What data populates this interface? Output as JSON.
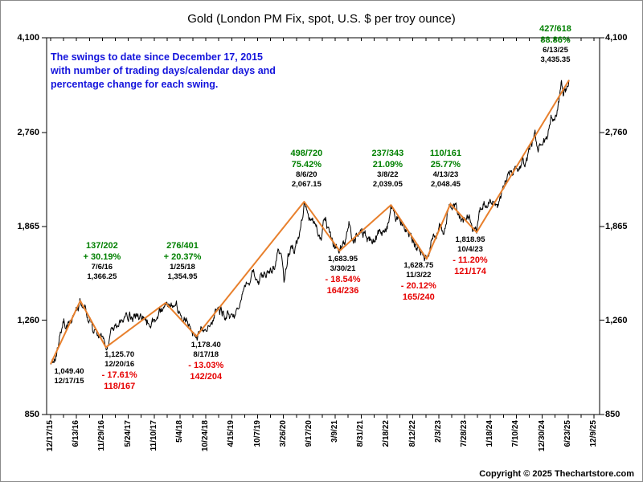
{
  "title": "Gold (London PM Fix, spot, U.S. $ per troy ounce)",
  "note_lines": [
    "The swings to date since December 17, 2015",
    "with number of trading days/calendar days and",
    "percentage change for each swing."
  ],
  "copyright": "Copyright © 2025 Thechartstore.com",
  "colors": {
    "green": "#008000",
    "red": "#e60000",
    "black": "#000000",
    "blue": "#1414dc",
    "orange": "#e8802d",
    "price_line": "#000000",
    "background": "#ffffff"
  },
  "chart_data": {
    "type": "line",
    "title": "Gold (London PM Fix, spot, U.S. $ per troy ounce)",
    "y_axis": {
      "scale": "log",
      "range": [
        850,
        4100
      ],
      "tick_values": [
        4100,
        2760,
        1865,
        1260,
        850
      ],
      "tick_labels": [
        "4,100",
        "2,760",
        "1,865",
        "1,260",
        "850"
      ]
    },
    "x_axis": {
      "unit": "trading days since 12/17/15",
      "range_trading_days": [
        0,
        2510
      ],
      "tick_labels": [
        "12/17/15",
        "6/13/16",
        "11/29/16",
        "5/24/17",
        "11/10/17",
        "5/4/18",
        "10/24/18",
        "4/15/19",
        "10/7/19",
        "3/26/20",
        "9/17/20",
        "3/9/21",
        "8/31/21",
        "2/18/22",
        "8/12/22",
        "2/3/23",
        "7/28/23",
        "1/18/24",
        "7/10/24",
        "12/30/24",
        "6/23/25",
        "12/9/25"
      ]
    },
    "swing_points": [
      {
        "date": "12/17/15",
        "price": 1049.4,
        "td": 0
      },
      {
        "date": "7/6/16",
        "price": 1366.25,
        "td": 137
      },
      {
        "date": "12/20/16",
        "price": 1125.7,
        "td": 255
      },
      {
        "date": "1/25/18",
        "price": 1354.95,
        "td": 531
      },
      {
        "date": "8/17/18",
        "price": 1178.4,
        "td": 673
      },
      {
        "date": "8/6/20",
        "price": 2067.15,
        "td": 1171
      },
      {
        "date": "3/30/21",
        "price": 1683.95,
        "td": 1335
      },
      {
        "date": "3/8/22",
        "price": 2039.05,
        "td": 1572
      },
      {
        "date": "11/3/22",
        "price": 1628.75,
        "td": 1737
      },
      {
        "date": "4/13/23",
        "price": 2048.45,
        "td": 1847
      },
      {
        "date": "10/4/23",
        "price": 1818.95,
        "td": 1968
      },
      {
        "date": "6/13/25",
        "price": 3435.35,
        "td": 2395
      }
    ],
    "annotations": [
      {
        "point": 0,
        "lines": [
          {
            "t": "1,049.40",
            "c": "black"
          },
          {
            "t": "12/17/15",
            "c": "black"
          }
        ]
      },
      {
        "point": 1,
        "lines": [
          {
            "t": "137/202",
            "c": "green"
          },
          {
            "t": "+ 30.19%",
            "c": "green"
          },
          {
            "t": "7/6/16",
            "c": "black"
          },
          {
            "t": "1,366.25",
            "c": "black"
          }
        ]
      },
      {
        "point": 2,
        "lines": [
          {
            "t": "1,125.70",
            "c": "black"
          },
          {
            "t": "12/20/16",
            "c": "black"
          },
          {
            "t": "- 17.61%",
            "c": "red"
          },
          {
            "t": "118/167",
            "c": "red"
          }
        ]
      },
      {
        "point": 3,
        "lines": [
          {
            "t": "276/401",
            "c": "green"
          },
          {
            "t": "+ 20.37%",
            "c": "green"
          },
          {
            "t": "1/25/18",
            "c": "black"
          },
          {
            "t": "1,354.95",
            "c": "black"
          }
        ]
      },
      {
        "point": 4,
        "lines": [
          {
            "t": "1,178.40",
            "c": "black"
          },
          {
            "t": "8/17/18",
            "c": "black"
          },
          {
            "t": "- 13.03%",
            "c": "red"
          },
          {
            "t": "142/204",
            "c": "red"
          }
        ]
      },
      {
        "point": 5,
        "lines": [
          {
            "t": "498/720",
            "c": "green"
          },
          {
            "t": "75.42%",
            "c": "green"
          },
          {
            "t": "8/6/20",
            "c": "black"
          },
          {
            "t": "2,067.15",
            "c": "black"
          }
        ]
      },
      {
        "point": 6,
        "lines": [
          {
            "t": "1,683.95",
            "c": "black"
          },
          {
            "t": "3/30/21",
            "c": "black"
          },
          {
            "t": "- 18.54%",
            "c": "red"
          },
          {
            "t": "164/236",
            "c": "red"
          }
        ]
      },
      {
        "point": 7,
        "lines": [
          {
            "t": "237/343",
            "c": "green"
          },
          {
            "t": "21.09%",
            "c": "green"
          },
          {
            "t": "3/8/22",
            "c": "black"
          },
          {
            "t": "2,039.05",
            "c": "black"
          }
        ]
      },
      {
        "point": 8,
        "lines": [
          {
            "t": "1,628.75",
            "c": "black"
          },
          {
            "t": "11/3/22",
            "c": "black"
          },
          {
            "t": "- 20.12%",
            "c": "red"
          },
          {
            "t": "165/240",
            "c": "red"
          }
        ]
      },
      {
        "point": 9,
        "lines": [
          {
            "t": "110/161",
            "c": "green"
          },
          {
            "t": "25.77%",
            "c": "green"
          },
          {
            "t": "4/13/23",
            "c": "black"
          },
          {
            "t": "2,048.45",
            "c": "black"
          }
        ]
      },
      {
        "point": 10,
        "lines": [
          {
            "t": "1,818.95",
            "c": "black"
          },
          {
            "t": "10/4/23",
            "c": "black"
          },
          {
            "t": "- 11.20%",
            "c": "red"
          },
          {
            "t": "121/174",
            "c": "red"
          }
        ]
      },
      {
        "point": 11,
        "lines": [
          {
            "t": "427/618",
            "c": "green"
          },
          {
            "t": "88.86%",
            "c": "green"
          },
          {
            "t": "6/13/25",
            "c": "black"
          },
          {
            "t": "3,435.35",
            "c": "black"
          }
        ]
      }
    ],
    "price_path_waypoints": [
      [
        0,
        1049.4
      ],
      [
        25,
        1085
      ],
      [
        55,
        1230
      ],
      [
        90,
        1255
      ],
      [
        110,
        1290
      ],
      [
        137,
        1366.25
      ],
      [
        160,
        1335
      ],
      [
        190,
        1255
      ],
      [
        225,
        1175
      ],
      [
        255,
        1125.7
      ],
      [
        285,
        1210
      ],
      [
        330,
        1255
      ],
      [
        375,
        1275
      ],
      [
        415,
        1295
      ],
      [
        450,
        1245
      ],
      [
        480,
        1265
      ],
      [
        510,
        1310
      ],
      [
        531,
        1354.95
      ],
      [
        555,
        1340
      ],
      [
        585,
        1320
      ],
      [
        625,
        1255
      ],
      [
        650,
        1200
      ],
      [
        673,
        1178.4
      ],
      [
        700,
        1205
      ],
      [
        735,
        1230
      ],
      [
        750,
        1255
      ],
      [
        775,
        1320
      ],
      [
        800,
        1290
      ],
      [
        830,
        1280
      ],
      [
        870,
        1320
      ],
      [
        890,
        1420
      ],
      [
        935,
        1546
      ],
      [
        965,
        1480
      ],
      [
        995,
        1505
      ],
      [
        1025,
        1555
      ],
      [
        1060,
        1672
      ],
      [
        1072,
        1590
      ],
      [
        1078,
        1474
      ],
      [
        1095,
        1635
      ],
      [
        1115,
        1700
      ],
      [
        1130,
        1715
      ],
      [
        1146,
        1770
      ],
      [
        1171,
        2067.15
      ],
      [
        1190,
        1960
      ],
      [
        1210,
        1935
      ],
      [
        1228,
        1880
      ],
      [
        1250,
        1765
      ],
      [
        1270,
        1945
      ],
      [
        1280,
        1850
      ],
      [
        1310,
        1725
      ],
      [
        1335,
        1683.95
      ],
      [
        1360,
        1740
      ],
      [
        1378,
        1900
      ],
      [
        1395,
        1765
      ],
      [
        1420,
        1785
      ],
      [
        1445,
        1815
      ],
      [
        1470,
        1780
      ],
      [
        1500,
        1755
      ],
      [
        1530,
        1800
      ],
      [
        1555,
        1850
      ],
      [
        1572,
        2039.05
      ],
      [
        1590,
        1945
      ],
      [
        1615,
        1905
      ],
      [
        1640,
        1840
      ],
      [
        1665,
        1815
      ],
      [
        1690,
        1700
      ],
      [
        1710,
        1660
      ],
      [
        1725,
        1640
      ],
      [
        1737,
        1628.75
      ],
      [
        1755,
        1715
      ],
      [
        1775,
        1790
      ],
      [
        1790,
        1825
      ],
      [
        1802,
        1870
      ],
      [
        1815,
        1812
      ],
      [
        1830,
        1920
      ],
      [
        1847,
        2048.45
      ],
      [
        1865,
        2015
      ],
      [
        1880,
        1960
      ],
      [
        1900,
        1925
      ],
      [
        1920,
        1915
      ],
      [
        1940,
        1890
      ],
      [
        1955,
        1850
      ],
      [
        1968,
        1818.95
      ],
      [
        1980,
        1985
      ],
      [
        2000,
        2035
      ],
      [
        2020,
        2025
      ],
      [
        2040,
        2040
      ],
      [
        2060,
        2050
      ],
      [
        2075,
        2100
      ],
      [
        2095,
        2200
      ],
      [
        2115,
        2340
      ],
      [
        2135,
        2330
      ],
      [
        2160,
        2350
      ],
      [
        2185,
        2425
      ],
      [
        2205,
        2525
      ],
      [
        2225,
        2660
      ],
      [
        2238,
        2780
      ],
      [
        2250,
        2570
      ],
      [
        2265,
        2630
      ],
      [
        2280,
        2650
      ],
      [
        2295,
        2720
      ],
      [
        2310,
        2920
      ],
      [
        2325,
        2915
      ],
      [
        2340,
        3030
      ],
      [
        2352,
        3240
      ],
      [
        2360,
        3420
      ],
      [
        2368,
        3220
      ],
      [
        2375,
        3330
      ],
      [
        2382,
        3290
      ],
      [
        2390,
        3360
      ],
      [
        2395,
        3435.35
      ]
    ]
  }
}
